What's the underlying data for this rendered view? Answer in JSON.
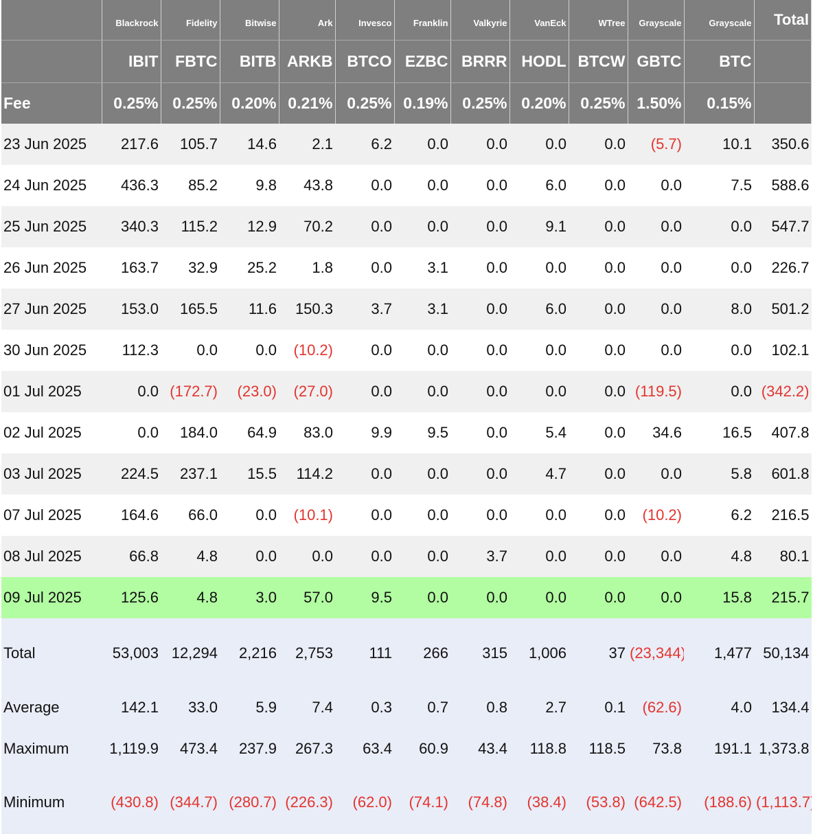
{
  "header": {
    "issuers": [
      "Blackrock",
      "Fidelity",
      "Bitwise",
      "Ark",
      "Invesco",
      "Franklin",
      "Valkyrie",
      "VanEck",
      "WTree",
      "Grayscale",
      "Grayscale"
    ],
    "total_label": "Total",
    "tickers": [
      "IBIT",
      "FBTC",
      "BITB",
      "ARKB",
      "BTCO",
      "EZBC",
      "BRRR",
      "HODL",
      "BTCW",
      "GBTC",
      "BTC"
    ],
    "fee_label": "Fee",
    "fees": [
      "0.25%",
      "0.25%",
      "0.20%",
      "0.21%",
      "0.25%",
      "0.19%",
      "0.25%",
      "0.20%",
      "0.25%",
      "1.50%",
      "0.15%"
    ]
  },
  "rows": [
    {
      "date": "23 Jun 2025",
      "values": [
        "217.6",
        "105.7",
        "14.6",
        "2.1",
        "6.2",
        "0.0",
        "0.0",
        "0.0",
        "0.0",
        "(5.7)",
        "10.1",
        "350.6"
      ]
    },
    {
      "date": "24 Jun 2025",
      "values": [
        "436.3",
        "85.2",
        "9.8",
        "43.8",
        "0.0",
        "0.0",
        "0.0",
        "6.0",
        "0.0",
        "0.0",
        "7.5",
        "588.6"
      ]
    },
    {
      "date": "25 Jun 2025",
      "values": [
        "340.3",
        "115.2",
        "12.9",
        "70.2",
        "0.0",
        "0.0",
        "0.0",
        "9.1",
        "0.0",
        "0.0",
        "0.0",
        "547.7"
      ]
    },
    {
      "date": "26 Jun 2025",
      "values": [
        "163.7",
        "32.9",
        "25.2",
        "1.8",
        "0.0",
        "3.1",
        "0.0",
        "0.0",
        "0.0",
        "0.0",
        "0.0",
        "226.7"
      ]
    },
    {
      "date": "27 Jun 2025",
      "values": [
        "153.0",
        "165.5",
        "11.6",
        "150.3",
        "3.7",
        "3.1",
        "0.0",
        "6.0",
        "0.0",
        "0.0",
        "8.0",
        "501.2"
      ]
    },
    {
      "date": "30 Jun 2025",
      "values": [
        "112.3",
        "0.0",
        "0.0",
        "(10.2)",
        "0.0",
        "0.0",
        "0.0",
        "0.0",
        "0.0",
        "0.0",
        "0.0",
        "102.1"
      ]
    },
    {
      "date": "01 Jul 2025",
      "values": [
        "0.0",
        "(172.7)",
        "(23.0)",
        "(27.0)",
        "0.0",
        "0.0",
        "0.0",
        "0.0",
        "0.0",
        "(119.5)",
        "0.0",
        "(342.2)"
      ]
    },
    {
      "date": "02 Jul 2025",
      "values": [
        "0.0",
        "184.0",
        "64.9",
        "83.0",
        "9.9",
        "9.5",
        "0.0",
        "5.4",
        "0.0",
        "34.6",
        "16.5",
        "407.8"
      ]
    },
    {
      "date": "03 Jul 2025",
      "values": [
        "224.5",
        "237.1",
        "15.5",
        "114.2",
        "0.0",
        "0.0",
        "0.0",
        "4.7",
        "0.0",
        "0.0",
        "5.8",
        "601.8"
      ]
    },
    {
      "date": "07 Jul 2025",
      "values": [
        "164.6",
        "66.0",
        "0.0",
        "(10.1)",
        "0.0",
        "0.0",
        "0.0",
        "0.0",
        "0.0",
        "(10.2)",
        "6.2",
        "216.5"
      ]
    },
    {
      "date": "08 Jul 2025",
      "values": [
        "66.8",
        "4.8",
        "0.0",
        "0.0",
        "0.0",
        "0.0",
        "3.7",
        "0.0",
        "0.0",
        "0.0",
        "4.8",
        "80.1"
      ]
    },
    {
      "date": "09 Jul 2025",
      "values": [
        "125.6",
        "4.8",
        "3.0",
        "57.0",
        "9.5",
        "0.0",
        "0.0",
        "0.0",
        "0.0",
        "0.0",
        "15.8",
        "215.7"
      ],
      "highlighted": true
    }
  ],
  "stats": [
    {
      "label": "Total",
      "key": "tot",
      "values": [
        "53,003",
        "12,294",
        "2,216",
        "2,753",
        "111",
        "266",
        "315",
        "1,006",
        "37",
        "(23,344)",
        "1,477",
        "50,134"
      ]
    },
    {
      "label": "Average",
      "key": "avg",
      "values": [
        "142.1",
        "33.0",
        "5.9",
        "7.4",
        "0.3",
        "0.7",
        "0.8",
        "2.7",
        "0.1",
        "(62.6)",
        "4.0",
        "134.4"
      ]
    },
    {
      "label": "Maximum",
      "key": "max",
      "values": [
        "1,119.9",
        "473.4",
        "237.9",
        "267.3",
        "63.4",
        "60.9",
        "43.4",
        "118.8",
        "118.5",
        "73.8",
        "191.1",
        "1,373.8"
      ]
    },
    {
      "label": "Minimum",
      "key": "min",
      "values": [
        "(430.8)",
        "(344.7)",
        "(280.7)",
        "(226.3)",
        "(62.0)",
        "(74.1)",
        "(74.8)",
        "(38.4)",
        "(53.8)",
        "(642.5)",
        "(188.6)",
        "(1,113.7)"
      ]
    }
  ],
  "colors": {
    "header_bg": "#7f7f7f",
    "negative": "#e3342f",
    "highlight_row": "#b2fda2",
    "stats_bg": "#e9edf7"
  }
}
